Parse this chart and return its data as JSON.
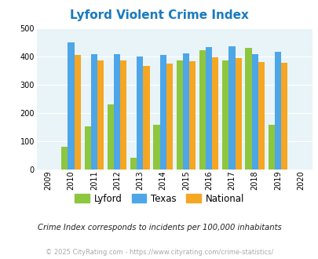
{
  "title": "Lyford Violent Crime Index",
  "years": [
    2010,
    2011,
    2012,
    2013,
    2014,
    2015,
    2016,
    2017,
    2018,
    2019
  ],
  "lyford": [
    82,
    153,
    232,
    42,
    158,
    388,
    423,
    387,
    432,
    160
  ],
  "texas": [
    452,
    410,
    410,
    400,
    405,
    412,
    435,
    438,
    410,
    417
  ],
  "national": [
    406,
    387,
    387,
    366,
    375,
    383,
    397,
    394,
    380,
    379
  ],
  "color_lyford": "#8dc63f",
  "color_texas": "#4da6e8",
  "color_national": "#f5a623",
  "bg_color": "#e8f4f8",
  "title_color": "#1a7abf",
  "subtitle": "Crime Index corresponds to incidents per 100,000 inhabitants",
  "subtitle_color": "#222222",
  "footnote": "© 2025 CityRating.com - https://www.cityrating.com/crime-statistics/",
  "footnote_color": "#aaaaaa",
  "xlim": [
    2008.5,
    2020.5
  ],
  "ylim": [
    0,
    500
  ],
  "yticks": [
    0,
    100,
    200,
    300,
    400,
    500
  ],
  "bar_width": 0.28
}
